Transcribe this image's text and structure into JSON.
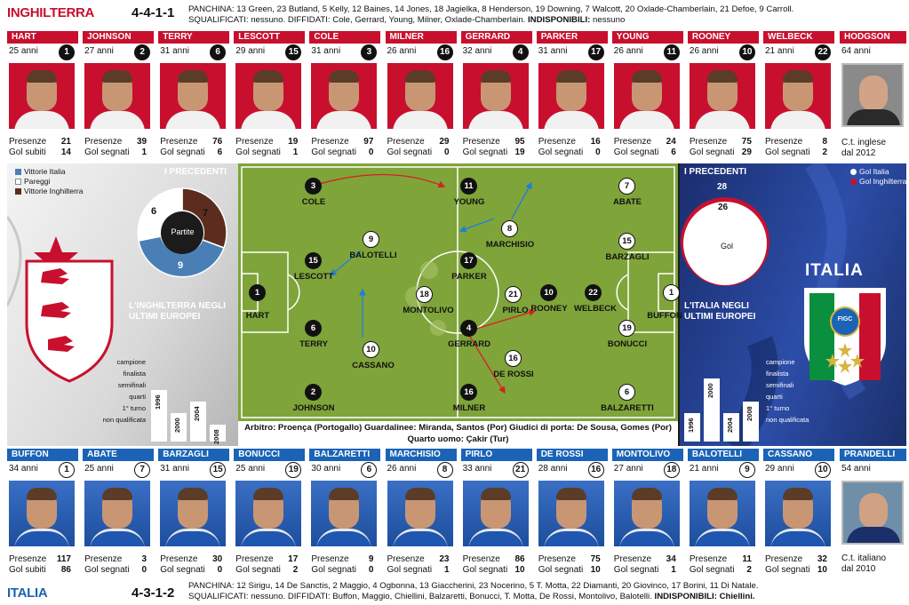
{
  "england": {
    "team_name": "INGHILTERRA",
    "formation": "4-4-1-1",
    "bench_label": "PANCHINA:",
    "bench_text": "13 Green, 23 Butland, 5 Kelly, 12 Baines, 14 Jones, 18 Jagielka, 8 Henderson, 19 Downing, 7 Walcott, 20 Oxlade-Chamberlain, 21 Defoe, 9 Carroll.",
    "suspended_label": "SQUALIFICATI:",
    "suspended_text": "nessuno.",
    "warned_label": "DIFFIDATI:",
    "warned_text": "Cole, Gerrard, Young, Milner, Oxlade-Chamberlain.",
    "unavailable_label": "INDISPONIBILI:",
    "unavailable_text": "nessuno",
    "players": [
      {
        "name": "HART",
        "age": "25 anni",
        "number": "1",
        "stat1_label": "Presenze",
        "stat1_value": "21",
        "stat2_label": "Gol subiti",
        "stat2_value": "14"
      },
      {
        "name": "JOHNSON",
        "age": "27 anni",
        "number": "2",
        "stat1_label": "Presenze",
        "stat1_value": "39",
        "stat2_label": "Gol segnati",
        "stat2_value": "1"
      },
      {
        "name": "TERRY",
        "age": "31 anni",
        "number": "6",
        "stat1_label": "Presenze",
        "stat1_value": "76",
        "stat2_label": "Gol segnati",
        "stat2_value": "6"
      },
      {
        "name": "LESCOTT",
        "age": "29 anni",
        "number": "15",
        "stat1_label": "Presenze",
        "stat1_value": "19",
        "stat2_label": "Gol segnati",
        "stat2_value": "1"
      },
      {
        "name": "COLE",
        "age": "31 anni",
        "number": "3",
        "stat1_label": "Presenze",
        "stat1_value": "97",
        "stat2_label": "Gol segnati",
        "stat2_value": "0"
      },
      {
        "name": "MILNER",
        "age": "26 anni",
        "number": "16",
        "stat1_label": "Presenze",
        "stat1_value": "29",
        "stat2_label": "Gol segnati",
        "stat2_value": "0"
      },
      {
        "name": "GERRARD",
        "age": "32 anni",
        "number": "4",
        "stat1_label": "Presenze",
        "stat1_value": "95",
        "stat2_label": "Gol segnati",
        "stat2_value": "19"
      },
      {
        "name": "PARKER",
        "age": "31 anni",
        "number": "17",
        "stat1_label": "Presenze",
        "stat1_value": "16",
        "stat2_label": "Gol segnati",
        "stat2_value": "0"
      },
      {
        "name": "YOUNG",
        "age": "26 anni",
        "number": "11",
        "stat1_label": "Presenze",
        "stat1_value": "24",
        "stat2_label": "Gol segnati",
        "stat2_value": "6"
      },
      {
        "name": "ROONEY",
        "age": "26 anni",
        "number": "10",
        "stat1_label": "Presenze",
        "stat1_value": "75",
        "stat2_label": "Gol segnati",
        "stat2_value": "29"
      },
      {
        "name": "WELBECK",
        "age": "21 anni",
        "number": "22",
        "stat1_label": "Presenze",
        "stat1_value": "8",
        "stat2_label": "Gol segnati",
        "stat2_value": "2"
      }
    ],
    "coach": {
      "name": "HODGSON",
      "age": "64 anni",
      "role": "C.t. inglese",
      "since": "dal 2012"
    }
  },
  "italy": {
    "team_name": "ITALIA",
    "formation": "4-3-1-2",
    "bench_label": "PANCHINA:",
    "bench_text": "12 Sirigu, 14 De Sanctis, 2 Maggio, 4 Ogbonna, 13 Giaccherini, 23 Nocerino, 5 T. Motta, 22 Diamanti, 20 Giovinco, 17 Borini, 11 Di Natale.",
    "suspended_label": "SQUALIFICATI:",
    "suspended_text": "nessuno.",
    "warned_label": "DIFFIDATI:",
    "warned_text": "Buffon, Maggio, Chiellini, Balzaretti, Bonucci, T. Motta, De Rossi, Montolivo, Balotelli.",
    "unavailable_label": "INDISPONIBILI:",
    "unavailable_text": "Chiellini.",
    "players": [
      {
        "name": "BUFFON",
        "age": "34 anni",
        "number": "1",
        "stat1_label": "Presenze",
        "stat1_value": "117",
        "stat2_label": "Gol subiti",
        "stat2_value": "86"
      },
      {
        "name": "ABATE",
        "age": "25 anni",
        "number": "7",
        "stat1_label": "Presenze",
        "stat1_value": "3",
        "stat2_label": "Gol segnati",
        "stat2_value": "0"
      },
      {
        "name": "BARZAGLI",
        "age": "31 anni",
        "number": "15",
        "stat1_label": "Presenze",
        "stat1_value": "30",
        "stat2_label": "Gol segnati",
        "stat2_value": "0"
      },
      {
        "name": "BONUCCI",
        "age": "25 anni",
        "number": "19",
        "stat1_label": "Presenze",
        "stat1_value": "17",
        "stat2_label": "Gol segnati",
        "stat2_value": "2"
      },
      {
        "name": "BALZARETTI",
        "age": "30 anni",
        "number": "6",
        "stat1_label": "Presenze",
        "stat1_value": "9",
        "stat2_label": "Gol segnati",
        "stat2_value": "0"
      },
      {
        "name": "MARCHISIO",
        "age": "26 anni",
        "number": "8",
        "stat1_label": "Presenze",
        "stat1_value": "23",
        "stat2_label": "Gol segnati",
        "stat2_value": "1"
      },
      {
        "name": "PIRLO",
        "age": "33 anni",
        "number": "21",
        "stat1_label": "Presenze",
        "stat1_value": "86",
        "stat2_label": "Gol segnati",
        "stat2_value": "10"
      },
      {
        "name": "DE ROSSI",
        "age": "28 anni",
        "number": "16",
        "stat1_label": "Presenze",
        "stat1_value": "75",
        "stat2_label": "Gol segnati",
        "stat2_value": "10"
      },
      {
        "name": "MONTOLIVO",
        "age": "27 anni",
        "number": "18",
        "stat1_label": "Presenze",
        "stat1_value": "34",
        "stat2_label": "Gol segnati",
        "stat2_value": "1"
      },
      {
        "name": "BALOTELLI",
        "age": "21 anni",
        "number": "9",
        "stat1_label": "Presenze",
        "stat1_value": "11",
        "stat2_label": "Gol segnati",
        "stat2_value": "2"
      },
      {
        "name": "CASSANO",
        "age": "29 anni",
        "number": "10",
        "stat1_label": "Presenze",
        "stat1_value": "32",
        "stat2_label": "Gol segnati",
        "stat2_value": "10"
      }
    ],
    "coach": {
      "name": "PRANDELLI",
      "age": "54 anni",
      "role": "C.t. italiano",
      "since": "dal 2010"
    }
  },
  "precedents": {
    "title": "I PRECEDENTI",
    "legend": [
      {
        "label": "Vittorie Italia",
        "color": "#4a7fb5"
      },
      {
        "label": "Pareggi",
        "color": "#ffffff"
      },
      {
        "label": "Vittorie Inghilterra",
        "color": "#5c2d1f"
      }
    ],
    "center_label": "Partite",
    "italy_wins": "9",
    "draws": "6",
    "england_wins": "7",
    "goals_title": "I PRECEDENTI",
    "goals_legend": [
      {
        "label": "Gol Italia",
        "color": "#ffffff"
      },
      {
        "label": "Gol Inghilterra",
        "color": "#c8102e"
      }
    ],
    "goals_center": "Gol",
    "goals_italy": "28",
    "goals_england": "26"
  },
  "euro_history": {
    "england_title_1": "L'INGHILTERRA NEGLI",
    "england_title_2": "ULTIMI EUROPEI",
    "italy_title_1": "L'ITALIA NEGLI",
    "italy_title_2": "ULTIMI EUROPEI",
    "levels": [
      "campione",
      "finalista",
      "semifinali",
      "quarti",
      "1° turno",
      "non qualificata"
    ],
    "england": [
      {
        "year": "1996",
        "level": 2
      },
      {
        "year": "2000",
        "level": 4
      },
      {
        "year": "2004",
        "level": 3
      },
      {
        "year": "2008",
        "level": 5
      }
    ],
    "italy": [
      {
        "year": "1996",
        "level": 4
      },
      {
        "year": "2000",
        "level": 1
      },
      {
        "year": "2004",
        "level": 4
      },
      {
        "year": "2008",
        "level": 3
      }
    ]
  },
  "pitch": {
    "caption_line1": "Arbitro: Proença (Portogallo) Guardalinee: Miranda, Santos (Por) Giudici di porta: De Sousa, Gomes (Por)",
    "caption_line2": "Quarto uomo: Çakir (Tur)",
    "england": [
      {
        "num": "1",
        "name": "HART"
      },
      {
        "num": "2",
        "name": "JOHNSON"
      },
      {
        "num": "6",
        "name": "TERRY"
      },
      {
        "num": "15",
        "name": "LESCOTT"
      },
      {
        "num": "3",
        "name": "COLE"
      },
      {
        "num": "16",
        "name": "MILNER"
      },
      {
        "num": "4",
        "name": "GERRARD"
      },
      {
        "num": "17",
        "name": "PARKER"
      },
      {
        "num": "11",
        "name": "YOUNG"
      },
      {
        "num": "10",
        "name": "ROONEY"
      },
      {
        "num": "22",
        "name": "WELBECK"
      }
    ],
    "italy": [
      {
        "num": "1",
        "name": "BUFFON"
      },
      {
        "num": "7",
        "name": "ABATE"
      },
      {
        "num": "15",
        "name": "BARZAGLI"
      },
      {
        "num": "19",
        "name": "BONUCCI"
      },
      {
        "num": "6",
        "name": "BALZARETTI"
      },
      {
        "num": "8",
        "name": "MARCHISIO"
      },
      {
        "num": "21",
        "name": "PIRLO"
      },
      {
        "num": "16",
        "name": "DE ROSSI"
      },
      {
        "num": "18",
        "name": "MONTOLIVO"
      },
      {
        "num": "9",
        "name": "BALOTELLI"
      },
      {
        "num": "10",
        "name": "CASSANO"
      }
    ]
  },
  "flag_ita_text": "ITALIA",
  "flag_ita_badge": "FIGC",
  "colors": {
    "england_red": "#c8102e",
    "italy_blue": "#1a63b6",
    "pitch_green": "#7fa43a"
  }
}
